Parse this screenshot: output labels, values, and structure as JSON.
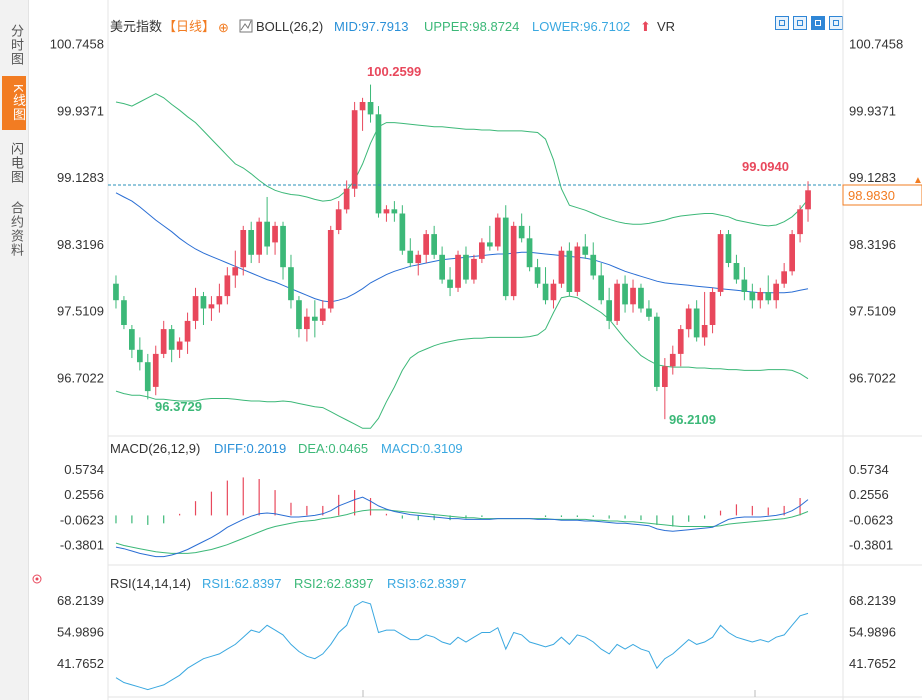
{
  "sidebar": {
    "tabs": [
      {
        "label": "分时图",
        "active": false
      },
      {
        "label": "K线图",
        "active": true
      },
      {
        "label": "闪电图",
        "active": false
      },
      {
        "label": "合约资料",
        "active": false
      }
    ]
  },
  "header": {
    "instrument": "美元指数",
    "period": "【日线】",
    "boll_name": "BOLL(26,2)",
    "mid": "MID:97.7913",
    "upper": "UPPER:98.8724",
    "lower": "LOWER:96.7102",
    "vr": "VR"
  },
  "macd_header": {
    "name": "MACD(26,12,9)",
    "diff": "DIFF:0.2019",
    "dea": "DEA:0.0465",
    "macd": "MACD:0.3109"
  },
  "rsi_header": {
    "name": "RSI(14,14,14)",
    "rsi1": "RSI1:62.8397",
    "rsi2": "RSI2:62.8397",
    "rsi3": "RSI3:62.8397"
  },
  "colors": {
    "up": "#e8485c",
    "down": "#3cb878",
    "mid": "#2a6ed4",
    "band": "#3cb878",
    "diff": "#2a6ed4",
    "dea": "#3cb878",
    "rsi": "#3aa8e0",
    "accent": "#f27c22",
    "header_blue": "#2a90d8"
  },
  "toolbar_icons": [
    "crosshair-icon",
    "zoom-in-icon",
    "zoom-out-icon",
    "fullscreen-icon"
  ],
  "chart_data": [
    {
      "type": "candlestick",
      "title": "美元指数 日线",
      "price_axis_ticks": [
        "100.7458",
        "99.9371",
        "99.1283",
        "98.3196",
        "97.5109",
        "96.7022"
      ],
      "ylim": [
        96.2,
        100.8
      ],
      "last_price": "98.9830",
      "annotations": {
        "high": "100.2599",
        "low1": "96.3729",
        "low2": "96.2109",
        "recent_high": "99.0940"
      },
      "candles": [
        [
          97.85,
          97.95,
          97.55,
          97.65
        ],
        [
          97.65,
          97.7,
          97.3,
          97.35
        ],
        [
          97.3,
          97.35,
          96.95,
          97.05
        ],
        [
          97.05,
          97.2,
          96.8,
          96.9
        ],
        [
          96.9,
          97.0,
          96.45,
          96.55
        ],
        [
          96.6,
          97.1,
          96.5,
          97.0
        ],
        [
          97.0,
          97.4,
          96.95,
          97.3
        ],
        [
          97.3,
          97.35,
          96.9,
          97.05
        ],
        [
          97.05,
          97.2,
          96.95,
          97.15
        ],
        [
          97.15,
          97.5,
          97.0,
          97.4
        ],
        [
          97.4,
          97.8,
          97.3,
          97.7
        ],
        [
          97.7,
          97.75,
          97.35,
          97.55
        ],
        [
          97.55,
          97.7,
          97.4,
          97.6
        ],
        [
          97.6,
          97.85,
          97.5,
          97.7
        ],
        [
          97.7,
          98.05,
          97.6,
          97.95
        ],
        [
          97.95,
          98.25,
          97.8,
          98.05
        ],
        [
          98.05,
          98.55,
          97.95,
          98.5
        ],
        [
          98.5,
          98.6,
          98.1,
          98.2
        ],
        [
          98.2,
          98.65,
          98.1,
          98.6
        ],
        [
          98.6,
          98.9,
          98.2,
          98.3
        ],
        [
          98.35,
          98.6,
          98.2,
          98.55
        ],
        [
          98.55,
          98.6,
          97.9,
          98.05
        ],
        [
          98.05,
          98.2,
          97.55,
          97.65
        ],
        [
          97.65,
          97.7,
          97.2,
          97.3
        ],
        [
          97.3,
          97.55,
          97.15,
          97.45
        ],
        [
          97.45,
          97.65,
          97.2,
          97.4
        ],
        [
          97.4,
          97.65,
          97.35,
          97.55
        ],
        [
          97.55,
          98.55,
          97.5,
          98.5
        ],
        [
          98.5,
          98.85,
          98.45,
          98.75
        ],
        [
          98.75,
          99.1,
          98.7,
          99.0
        ],
        [
          99.0,
          100.05,
          98.9,
          99.95
        ],
        [
          99.95,
          100.1,
          99.7,
          100.05
        ],
        [
          100.05,
          100.26,
          99.8,
          99.9
        ],
        [
          99.9,
          100.0,
          98.65,
          98.7
        ],
        [
          98.7,
          98.8,
          98.6,
          98.75
        ],
        [
          98.75,
          98.85,
          98.6,
          98.7
        ],
        [
          98.7,
          98.8,
          98.2,
          98.25
        ],
        [
          98.25,
          98.4,
          98.05,
          98.1
        ],
        [
          98.1,
          98.25,
          97.95,
          98.2
        ],
        [
          98.2,
          98.5,
          98.1,
          98.45
        ],
        [
          98.45,
          98.55,
          98.15,
          98.2
        ],
        [
          98.2,
          98.3,
          97.85,
          97.9
        ],
        [
          97.9,
          98.05,
          97.7,
          97.8
        ],
        [
          97.8,
          98.25,
          97.75,
          98.2
        ],
        [
          98.2,
          98.3,
          97.85,
          97.9
        ],
        [
          97.9,
          98.2,
          97.85,
          98.15
        ],
        [
          98.15,
          98.4,
          98.1,
          98.35
        ],
        [
          98.35,
          98.55,
          98.25,
          98.3
        ],
        [
          98.3,
          98.7,
          98.25,
          98.65
        ],
        [
          98.65,
          98.8,
          97.65,
          97.7
        ],
        [
          97.7,
          98.6,
          97.65,
          98.55
        ],
        [
          98.55,
          98.7,
          98.35,
          98.4
        ],
        [
          98.4,
          98.55,
          98.0,
          98.05
        ],
        [
          98.05,
          98.15,
          97.8,
          97.85
        ],
        [
          97.85,
          98.05,
          97.6,
          97.65
        ],
        [
          97.65,
          97.9,
          97.55,
          97.85
        ],
        [
          97.85,
          98.3,
          97.8,
          98.25
        ],
        [
          98.25,
          98.35,
          97.7,
          97.75
        ],
        [
          97.75,
          98.35,
          97.7,
          98.3
        ],
        [
          98.3,
          98.45,
          98.15,
          98.2
        ],
        [
          98.2,
          98.35,
          97.9,
          97.95
        ],
        [
          97.95,
          98.1,
          97.6,
          97.65
        ],
        [
          97.65,
          97.8,
          97.3,
          97.4
        ],
        [
          97.4,
          97.9,
          97.35,
          97.85
        ],
        [
          97.85,
          97.95,
          97.5,
          97.6
        ],
        [
          97.6,
          97.9,
          97.5,
          97.8
        ],
        [
          97.8,
          97.85,
          97.5,
          97.55
        ],
        [
          97.55,
          97.65,
          97.4,
          97.45
        ],
        [
          97.45,
          97.5,
          96.55,
          96.6
        ],
        [
          96.6,
          96.95,
          96.21,
          96.85
        ],
        [
          96.85,
          97.1,
          96.75,
          97.0
        ],
        [
          97.0,
          97.35,
          96.85,
          97.3
        ],
        [
          97.3,
          97.6,
          97.2,
          97.55
        ],
        [
          97.55,
          97.65,
          97.15,
          97.2
        ],
        [
          97.2,
          97.75,
          97.1,
          97.35
        ],
        [
          97.35,
          97.8,
          97.25,
          97.75
        ],
        [
          97.75,
          98.5,
          97.7,
          98.45
        ],
        [
          98.45,
          98.5,
          98.05,
          98.1
        ],
        [
          98.1,
          98.2,
          97.85,
          97.9
        ],
        [
          97.9,
          98.05,
          97.65,
          97.75
        ],
        [
          97.75,
          97.85,
          97.55,
          97.65
        ],
        [
          97.65,
          97.8,
          97.55,
          97.75
        ],
        [
          97.75,
          97.95,
          97.6,
          97.65
        ],
        [
          97.65,
          97.9,
          97.55,
          97.85
        ],
        [
          97.85,
          98.1,
          97.8,
          98.0
        ],
        [
          98.0,
          98.5,
          97.95,
          98.45
        ],
        [
          98.45,
          98.8,
          98.35,
          98.75
        ],
        [
          98.75,
          99.09,
          98.6,
          98.98
        ]
      ],
      "boll_mid": [
        98.95,
        98.9,
        98.85,
        98.78,
        98.7,
        98.62,
        98.55,
        98.48,
        98.4,
        98.33,
        98.27,
        98.22,
        98.18,
        98.14,
        98.1,
        98.06,
        98.02,
        97.98,
        97.94,
        97.9,
        97.87,
        97.83,
        97.79,
        97.75,
        97.71,
        97.67,
        97.64,
        97.63,
        97.65,
        97.68,
        97.73,
        97.79,
        97.86,
        97.91,
        97.96,
        98.0,
        98.03,
        98.06,
        98.08,
        98.1,
        98.12,
        98.14,
        98.15,
        98.16,
        98.17,
        98.18,
        98.19,
        98.2,
        98.21,
        98.21,
        98.22,
        98.23,
        98.23,
        98.22,
        98.21,
        98.2,
        98.19,
        98.18,
        98.17,
        98.16,
        98.14,
        98.11,
        98.08,
        98.04,
        98.0,
        97.97,
        97.94,
        97.91,
        97.88,
        97.86,
        97.85,
        97.84,
        97.83,
        97.82,
        97.81,
        97.8,
        97.79,
        97.78,
        97.77,
        97.76,
        97.75,
        97.74,
        97.74,
        97.74,
        97.74,
        97.75,
        97.77,
        97.79
      ],
      "boll_upper": [
        100.05,
        100.03,
        100.0,
        100.05,
        100.1,
        100.15,
        100.1,
        100.02,
        99.95,
        99.87,
        99.8,
        99.7,
        99.6,
        99.5,
        99.4,
        99.3,
        99.25,
        99.18,
        99.1,
        99.03,
        98.98,
        98.95,
        98.93,
        98.92,
        98.9,
        98.87,
        98.85,
        98.86,
        98.9,
        98.98,
        99.1,
        99.3,
        99.55,
        99.75,
        99.8,
        99.8,
        99.79,
        99.78,
        99.77,
        99.76,
        99.75,
        99.75,
        99.74,
        99.73,
        99.72,
        99.72,
        99.71,
        99.71,
        99.7,
        99.7,
        99.7,
        99.7,
        99.69,
        99.68,
        99.6,
        99.35,
        99.0,
        98.8,
        98.77,
        98.74,
        98.7,
        98.66,
        98.63,
        98.6,
        98.58,
        98.57,
        98.57,
        98.58,
        98.6,
        98.62,
        98.65,
        98.67,
        98.68,
        98.69,
        98.7,
        98.7,
        98.68,
        98.66,
        98.62,
        98.6,
        98.58,
        98.56,
        98.55,
        98.56,
        98.6,
        98.66,
        98.75,
        98.87
      ],
      "boll_lower": [
        96.55,
        96.52,
        96.5,
        96.5,
        96.48,
        96.45,
        96.45,
        96.44,
        96.43,
        96.43,
        96.43,
        96.45,
        96.46,
        96.46,
        96.46,
        96.45,
        96.44,
        96.43,
        96.43,
        96.42,
        96.42,
        96.43,
        96.42,
        96.4,
        96.38,
        96.36,
        96.35,
        96.3,
        96.25,
        96.2,
        96.15,
        96.1,
        96.1,
        96.22,
        96.42,
        96.6,
        96.8,
        96.95,
        97.02,
        97.06,
        97.1,
        97.13,
        97.15,
        97.17,
        97.18,
        97.19,
        97.19,
        97.2,
        97.2,
        97.2,
        97.2,
        97.2,
        97.21,
        97.23,
        97.3,
        97.5,
        97.68,
        97.7,
        97.68,
        97.62,
        97.56,
        97.5,
        97.42,
        97.3,
        97.18,
        97.08,
        96.98,
        96.92,
        96.87,
        96.85,
        96.84,
        96.84,
        96.84,
        96.83,
        96.83,
        96.82,
        96.82,
        96.81,
        96.81,
        96.8,
        96.8,
        96.8,
        96.81,
        96.81,
        96.81,
        96.8,
        96.76,
        96.7
      ]
    },
    {
      "type": "macd",
      "title": "MACD(26,12,9)",
      "axis_ticks": [
        "0.5734",
        "0.2556",
        "-0.0623",
        "-0.3801"
      ],
      "ylim": [
        -0.5,
        0.7
      ],
      "diff": [
        -0.4,
        -0.42,
        -0.45,
        -0.48,
        -0.5,
        -0.52,
        -0.52,
        -0.5,
        -0.47,
        -0.43,
        -0.38,
        -0.33,
        -0.28,
        -0.22,
        -0.15,
        -0.1,
        -0.05,
        -0.01,
        0.02,
        0.03,
        0.02,
        0.0,
        -0.02,
        -0.02,
        -0.01,
        0.0,
        0.02,
        0.06,
        0.12,
        0.16,
        0.2,
        0.23,
        0.18,
        0.12,
        0.08,
        0.05,
        0.03,
        0.01,
        0.0,
        -0.01,
        -0.02,
        -0.03,
        -0.04,
        -0.04,
        -0.05,
        -0.05,
        -0.05,
        -0.05,
        -0.04,
        -0.04,
        -0.04,
        -0.04,
        -0.04,
        -0.05,
        -0.05,
        -0.05,
        -0.06,
        -0.06,
        -0.06,
        -0.07,
        -0.07,
        -0.08,
        -0.09,
        -0.1,
        -0.1,
        -0.11,
        -0.12,
        -0.13,
        -0.17,
        -0.19,
        -0.2,
        -0.19,
        -0.18,
        -0.17,
        -0.16,
        -0.15,
        -0.1,
        -0.05,
        -0.03,
        -0.02,
        -0.02,
        -0.02,
        -0.01,
        0.0,
        0.02,
        0.06,
        0.12,
        0.2
      ],
      "dea": [
        -0.35,
        -0.38,
        -0.4,
        -0.42,
        -0.44,
        -0.46,
        -0.47,
        -0.48,
        -0.48,
        -0.48,
        -0.47,
        -0.45,
        -0.43,
        -0.4,
        -0.37,
        -0.33,
        -0.29,
        -0.25,
        -0.21,
        -0.17,
        -0.14,
        -0.12,
        -0.1,
        -0.08,
        -0.07,
        -0.06,
        -0.04,
        -0.03,
        -0.01,
        0.01,
        0.04,
        0.06,
        0.07,
        0.07,
        0.07,
        0.06,
        0.05,
        0.04,
        0.03,
        0.02,
        0.01,
        0.0,
        -0.01,
        -0.02,
        -0.03,
        -0.03,
        -0.04,
        -0.04,
        -0.04,
        -0.04,
        -0.04,
        -0.04,
        -0.04,
        -0.04,
        -0.04,
        -0.05,
        -0.05,
        -0.05,
        -0.05,
        -0.05,
        -0.06,
        -0.06,
        -0.07,
        -0.07,
        -0.08,
        -0.08,
        -0.09,
        -0.1,
        -0.11,
        -0.12,
        -0.13,
        -0.14,
        -0.14,
        -0.14,
        -0.14,
        -0.14,
        -0.13,
        -0.11,
        -0.1,
        -0.09,
        -0.08,
        -0.07,
        -0.06,
        -0.05,
        -0.04,
        -0.02,
        0.01,
        0.05
      ]
    },
    {
      "type": "line",
      "title": "RSI(14,14,14)",
      "axis_ticks": [
        "68.2139",
        "54.9896",
        "41.7652"
      ],
      "ylim": [
        30,
        72
      ],
      "rsi": [
        36,
        34,
        33,
        32,
        31,
        32,
        33,
        35,
        37,
        40,
        42,
        44,
        45,
        46,
        48,
        50,
        53,
        56,
        55,
        58,
        56,
        54,
        50,
        47,
        45,
        44,
        46,
        50,
        55,
        58,
        66,
        68,
        67,
        55,
        56,
        56,
        54,
        52,
        52,
        54,
        53,
        51,
        50,
        53,
        51,
        53,
        55,
        55,
        57,
        48,
        55,
        54,
        51,
        50,
        49,
        50,
        53,
        50,
        54,
        53,
        51,
        48,
        46,
        50,
        48,
        50,
        48,
        47,
        40,
        44,
        46,
        49,
        52,
        50,
        51,
        53,
        58,
        55,
        53,
        52,
        51,
        52,
        51,
        53,
        54,
        58,
        62,
        63
      ]
    }
  ]
}
